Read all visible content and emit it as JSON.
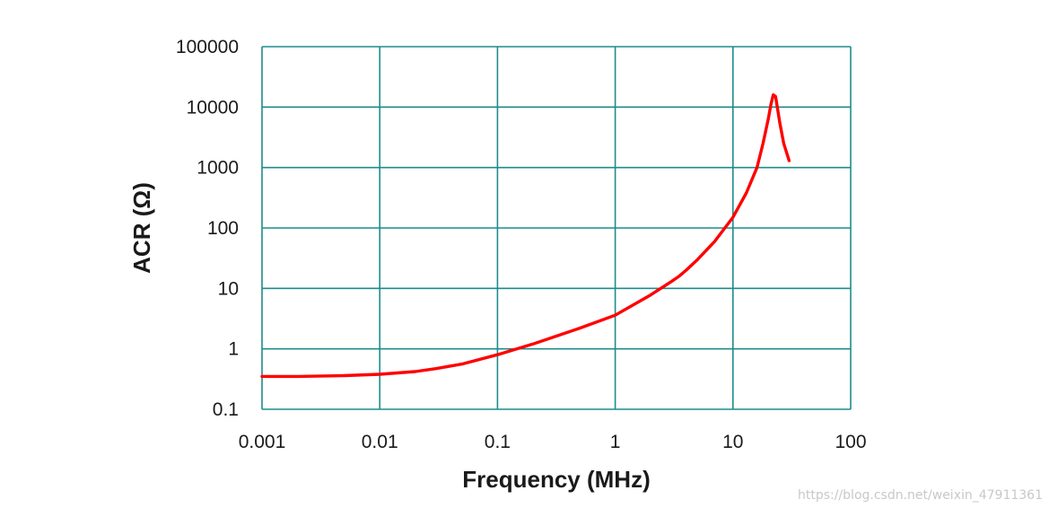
{
  "chart_data": {
    "type": "line",
    "xlabel": "Frequency (MHz)",
    "ylabel": "ACR (Ω)",
    "x_scale": "log",
    "y_scale": "log",
    "xlim": [
      0.001,
      100
    ],
    "ylim": [
      0.1,
      100000
    ],
    "x_ticks": [
      "0.001",
      "0.01",
      "0.1",
      "1",
      "10",
      "100"
    ],
    "y_ticks": [
      "0.1",
      "1",
      "10",
      "100",
      "1000",
      "10000",
      "100000"
    ],
    "grid": true,
    "legend": "none",
    "series": [
      {
        "color": "#ff0000",
        "x": [
          0.001,
          0.002,
          0.005,
          0.01,
          0.02,
          0.03,
          0.05,
          0.1,
          0.2,
          0.5,
          1,
          2,
          3,
          3.5,
          4,
          5,
          7,
          10,
          13,
          16,
          18,
          20,
          21,
          22,
          23,
          24,
          25,
          27,
          30
        ],
        "y": [
          0.35,
          0.35,
          0.36,
          0.38,
          0.42,
          0.47,
          0.56,
          0.8,
          1.2,
          2.2,
          3.6,
          7.8,
          13,
          16,
          20,
          30,
          60,
          150,
          380,
          1000,
          2500,
          6500,
          11000,
          16000,
          15000,
          9000,
          5500,
          2500,
          1300
        ]
      }
    ]
  },
  "watermark": "https://blog.csdn.net/weixin_47911361"
}
